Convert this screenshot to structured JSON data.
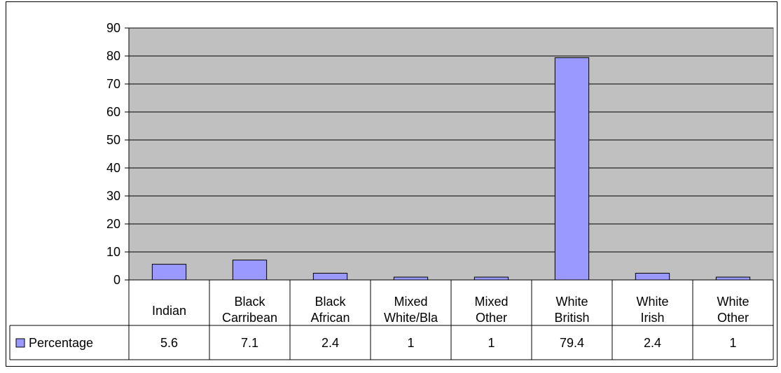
{
  "chart_data": {
    "type": "bar",
    "categories": [
      [
        "Indian"
      ],
      [
        "Black",
        "Carribean"
      ],
      [
        "Black",
        "African"
      ],
      [
        "Mixed",
        "White/Bla"
      ],
      [
        "Mixed",
        "Other"
      ],
      [
        "White",
        "British"
      ],
      [
        "White",
        "Irish"
      ],
      [
        "White",
        "Other"
      ]
    ],
    "series": [
      {
        "name": "Percentage",
        "values": [
          5.6,
          7.1,
          2.4,
          1,
          1,
          79.4,
          2.4,
          1
        ],
        "value_labels": [
          "5.6",
          "7.1",
          "2.4",
          "1",
          "1",
          "79.4",
          "2.4",
          "1"
        ],
        "color": "#9999ff"
      }
    ],
    "ylim": [
      0,
      90
    ],
    "yticks": [
      0,
      10,
      20,
      30,
      40,
      50,
      60,
      70,
      80,
      90
    ],
    "grid": true,
    "plot_background": "#c0c0c0",
    "legend": "data-table-left",
    "title": "",
    "xlabel": "",
    "ylabel": ""
  }
}
